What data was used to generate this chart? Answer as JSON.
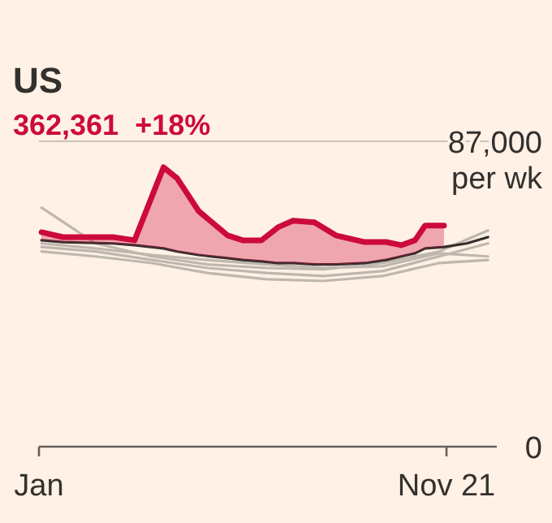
{
  "chart_data": {
    "type": "line",
    "title": "US",
    "subtitle": "362,361  +18%",
    "xlim": [
      "--01-01",
      "--12-31"
    ],
    "xticks": [
      {
        "value": "--01-01",
        "label": "Jan"
      },
      {
        "value": "--11-21",
        "label": "Nov 21"
      }
    ],
    "ylabel": "per wk",
    "ylim": [
      0,
      87000
    ],
    "yticks": [
      0,
      {
        "value": 87000,
        "label": "87,000"
      }
    ],
    "line_style": "solid",
    "marker": "none",
    "series": [
      {
        "color": "#bfb7ae",
        "x": [
          "--01-03",
          "--02-15",
          "--04-01",
          "--05-15",
          "--07-01",
          "--08-15",
          "--10-01",
          "--11-15",
          "--12-24"
        ],
        "values": [
          68100,
          57900,
          54200,
          51900,
          50900,
          50500,
          52300,
          55600,
          61600
        ]
      },
      {
        "color": "#bfb7ae",
        "x": [
          "--01-03",
          "--02-15",
          "--04-01",
          "--05-15",
          "--07-01",
          "--08-15",
          "--10-01",
          "--11-15",
          "--12-24"
        ],
        "values": [
          56900,
          55600,
          53200,
          50900,
          49500,
          48600,
          50000,
          54200,
          57900
        ]
      },
      {
        "color": "#bfb7ae",
        "x": [
          "--01-03",
          "--02-15",
          "--04-01",
          "--05-15",
          "--07-01",
          "--08-15",
          "--10-01",
          "--11-15",
          "--12-24"
        ],
        "values": [
          55600,
          54200,
          52300,
          49500,
          47700,
          47200,
          48600,
          52300,
          53200
        ]
      },
      {
        "color": "#bfb7ae",
        "x": [
          "--01-03",
          "--02-15",
          "--04-01",
          "--05-15",
          "--07-01",
          "--08-15",
          "--10-01",
          "--11-15",
          "--12-24"
        ],
        "values": [
          57900,
          56500,
          54600,
          53200,
          51900,
          50900,
          51400,
          55100,
          54200
        ]
      },
      {
        "color": "#33302e",
        "x": [
          "--01-03",
          "--01-20",
          "--03-01",
          "--03-18",
          "--04-10",
          "--04-21",
          "--05-08",
          "--05-31",
          "--06-12",
          "--06-27",
          "--07-10",
          "--07-22",
          "--08-08",
          "--08-25",
          "--09-17",
          "--10-04",
          "--10-16",
          "--10-27",
          "--11-04",
          "--11-19",
          "--12-07",
          "--12-24"
        ],
        "values": [
          58800,
          58300,
          57900,
          57400,
          56500,
          55600,
          54600,
          53700,
          53200,
          52800,
          52300,
          52300,
          51900,
          51900,
          52300,
          53200,
          54200,
          55100,
          56500,
          56900,
          57900,
          59700
        ]
      },
      {
        "color": "#cc0a3c",
        "x": [
          "--01-03",
          "--01-20",
          "--03-01",
          "--03-18",
          "--04-10",
          "--04-21",
          "--05-08",
          "--05-31",
          "--06-12",
          "--06-27",
          "--07-10",
          "--07-22",
          "--08-08",
          "--08-25",
          "--09-17",
          "--10-04",
          "--10-16",
          "--10-27",
          "--11-04",
          "--11-19"
        ],
        "values": [
          61100,
          59700,
          59700,
          58800,
          79600,
          76400,
          67100,
          60200,
          58800,
          58800,
          62500,
          64400,
          63900,
          60200,
          58300,
          58300,
          57400,
          58800,
          63000,
          63000
        ],
        "lower": [
          58800,
          58300,
          57900,
          57400,
          56500,
          55600,
          54600,
          53700,
          53200,
          52800,
          52300,
          52300,
          51900,
          51900,
          52300,
          53200,
          54200,
          55100,
          56500,
          56900
        ],
        "upper": [
          61100,
          59700,
          59700,
          58800,
          79600,
          76400,
          67100,
          60200,
          58800,
          58800,
          62500,
          64400,
          63900,
          60200,
          58300,
          58300,
          57400,
          58800,
          63000,
          63000
        ]
      }
    ]
  }
}
